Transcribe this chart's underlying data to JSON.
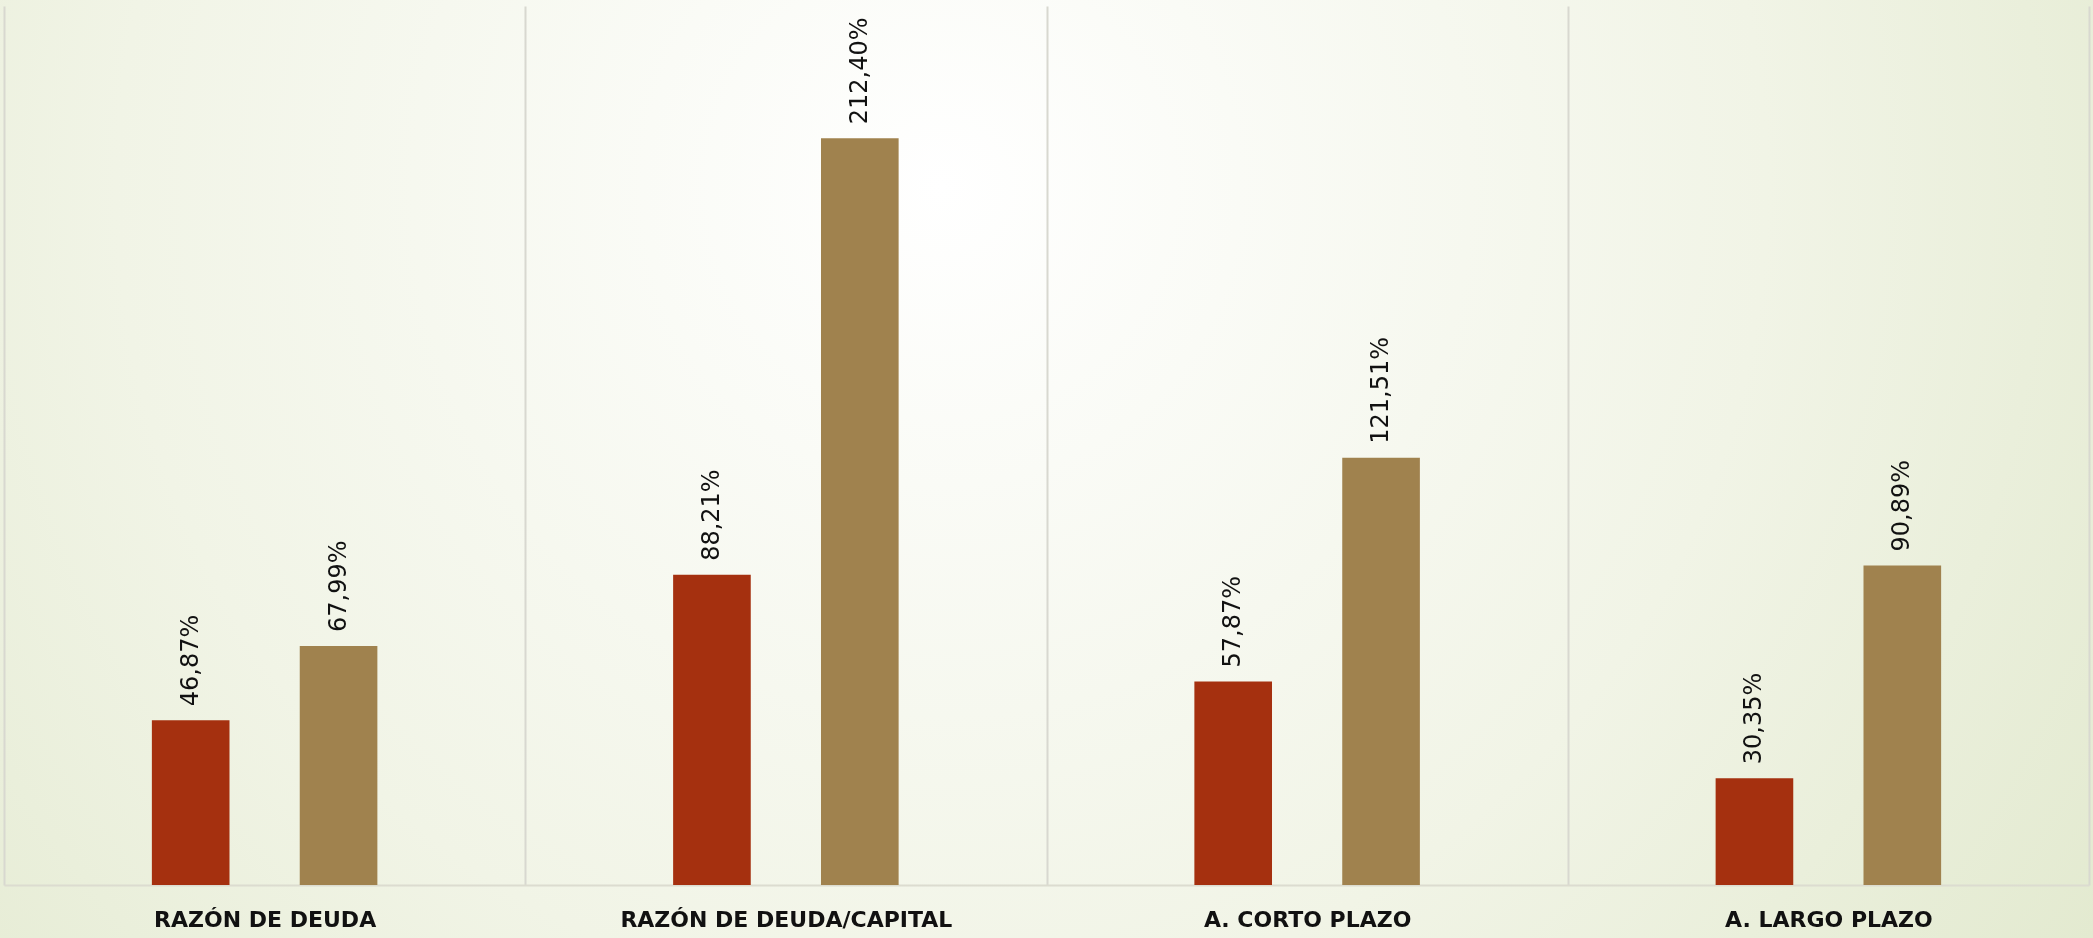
{
  "chart_data": {
    "type": "bar",
    "categories": [
      "RAZÓN DE DEUDA",
      "RAZÓN DE DEUDA/CAPITAL",
      "A. CORTO PLAZO",
      "A. LARGO PLAZO"
    ],
    "series": [
      {
        "color": "#a5300f",
        "values": [
          46.87,
          88.21,
          57.87,
          30.35
        ],
        "value_labels": [
          "46,87%",
          "88,21%",
          "57,87%",
          "30,35%"
        ]
      },
      {
        "color": "#a0824e",
        "values": [
          67.99,
          212.4,
          121.51,
          90.89
        ],
        "value_labels": [
          "67,99%",
          "212,40%",
          "121,51%",
          "90,89%"
        ]
      }
    ],
    "ylim": [
      0,
      250
    ],
    "grid": "x",
    "legend": false
  }
}
